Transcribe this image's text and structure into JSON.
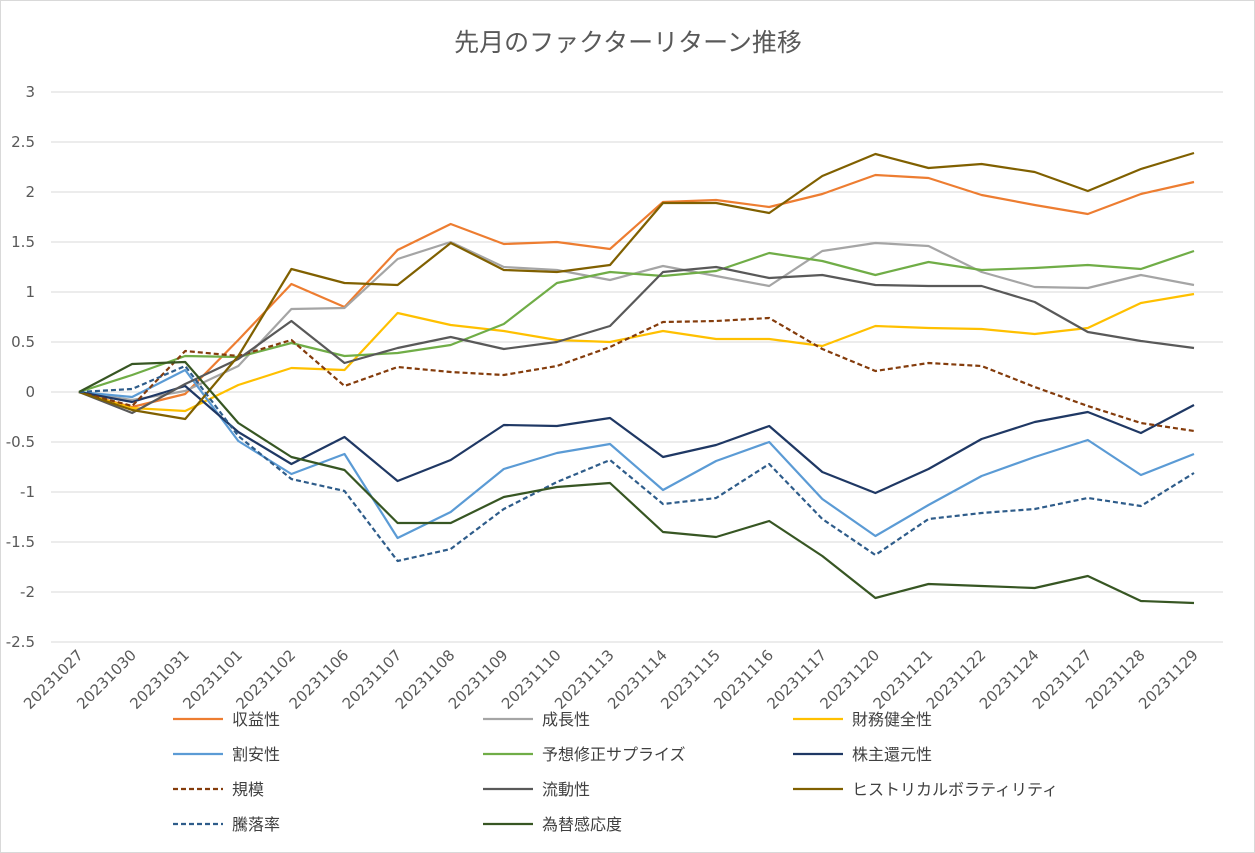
{
  "chart_data": {
    "type": "line",
    "title": "先月のファクターリターン推移",
    "xlabel": "",
    "ylabel": "",
    "ylim": [
      -2.5,
      3
    ],
    "yticks": [
      3,
      2.5,
      2,
      1.5,
      1,
      0.5,
      0,
      -0.5,
      -1,
      -1.5,
      -2,
      -2.5
    ],
    "grid": true,
    "legend_position": "bottom",
    "categories": [
      "20231027",
      "20231030",
      "20231031",
      "20231101",
      "20231102",
      "20231106",
      "20231107",
      "20231108",
      "20231109",
      "20231110",
      "20231113",
      "20231114",
      "20231115",
      "20231116",
      "20231117",
      "20231120",
      "20231121",
      "20231122",
      "20231124",
      "20231127",
      "20231128",
      "20231129"
    ],
    "series": [
      {
        "name": "収益性",
        "color": "#ED7D31",
        "dash": "solid",
        "values": [
          0,
          -0.15,
          -0.02,
          0.52,
          1.08,
          0.85,
          1.42,
          1.68,
          1.48,
          1.5,
          1.43,
          1.9,
          1.92,
          1.85,
          1.98,
          2.17,
          2.14,
          1.97,
          1.87,
          1.78,
          1.98,
          2.1
        ]
      },
      {
        "name": "成長性",
        "color": "#A5A5A5",
        "dash": "solid",
        "values": [
          0,
          -0.08,
          0.01,
          0.26,
          0.83,
          0.84,
          1.33,
          1.5,
          1.25,
          1.22,
          1.12,
          1.26,
          1.16,
          1.06,
          1.41,
          1.49,
          1.46,
          1.2,
          1.05,
          1.04,
          1.17,
          1.07
        ]
      },
      {
        "name": "財務健全性",
        "color": "#FFC000",
        "dash": "solid",
        "values": [
          0,
          -0.16,
          -0.19,
          0.07,
          0.24,
          0.22,
          0.79,
          0.67,
          0.61,
          0.52,
          0.5,
          0.61,
          0.53,
          0.53,
          0.46,
          0.66,
          0.64,
          0.63,
          0.58,
          0.64,
          0.89,
          0.98
        ]
      },
      {
        "name": "割安性",
        "color": "#5B9BD5",
        "dash": "solid",
        "values": [
          0,
          -0.05,
          0.22,
          -0.49,
          -0.82,
          -0.62,
          -1.46,
          -1.2,
          -0.77,
          -0.61,
          -0.52,
          -0.98,
          -0.69,
          -0.5,
          -1.07,
          -1.44,
          -1.13,
          -0.84,
          -0.65,
          -0.48,
          -0.83,
          -0.62
        ]
      },
      {
        "name": "予想修正サプライズ",
        "color": "#70AD47",
        "dash": "solid",
        "values": [
          0,
          0.17,
          0.36,
          0.35,
          0.49,
          0.36,
          0.39,
          0.47,
          0.68,
          1.09,
          1.2,
          1.16,
          1.21,
          1.39,
          1.31,
          1.17,
          1.3,
          1.22,
          1.24,
          1.27,
          1.23,
          1.41
        ]
      },
      {
        "name": "株主還元性",
        "color": "#1F3864",
        "dash": "solid",
        "values": [
          0,
          -0.1,
          0.06,
          -0.4,
          -0.72,
          -0.45,
          -0.89,
          -0.68,
          -0.33,
          -0.34,
          -0.26,
          -0.65,
          -0.53,
          -0.34,
          -0.8,
          -1.01,
          -0.77,
          -0.47,
          -0.3,
          -0.2,
          -0.41,
          -0.13
        ]
      },
      {
        "name": "規模",
        "color": "#843C0C",
        "dash": "dashed",
        "values": [
          0,
          -0.14,
          0.41,
          0.36,
          0.52,
          0.06,
          0.25,
          0.2,
          0.17,
          0.26,
          0.45,
          0.7,
          0.71,
          0.74,
          0.43,
          0.21,
          0.29,
          0.26,
          0.05,
          -0.14,
          -0.31,
          -0.39
        ]
      },
      {
        "name": "流動性",
        "color": "#595959",
        "dash": "solid",
        "values": [
          0,
          -0.21,
          0.08,
          0.33,
          0.71,
          0.29,
          0.44,
          0.55,
          0.43,
          0.5,
          0.66,
          1.2,
          1.25,
          1.14,
          1.17,
          1.07,
          1.06,
          1.06,
          0.9,
          0.6,
          0.51,
          0.44
        ]
      },
      {
        "name": "ヒストリカルボラティリティ",
        "color": "#806000",
        "dash": "solid",
        "values": [
          0,
          -0.18,
          -0.27,
          0.36,
          1.23,
          1.09,
          1.07,
          1.49,
          1.22,
          1.2,
          1.27,
          1.89,
          1.89,
          1.79,
          2.16,
          2.38,
          2.24,
          2.28,
          2.2,
          2.01,
          2.23,
          2.39
        ]
      },
      {
        "name": "騰落率",
        "color": "#2E5C8A",
        "dash": "dashed",
        "values": [
          0,
          0.03,
          0.26,
          -0.44,
          -0.87,
          -0.99,
          -1.69,
          -1.57,
          -1.17,
          -0.9,
          -0.68,
          -1.12,
          -1.06,
          -0.72,
          -1.27,
          -1.63,
          -1.27,
          -1.21,
          -1.17,
          -1.06,
          -1.14,
          -0.81
        ]
      },
      {
        "name": "為替感応度",
        "color": "#375623",
        "dash": "solid",
        "values": [
          0,
          0.28,
          0.3,
          -0.31,
          -0.65,
          -0.78,
          -1.31,
          -1.31,
          -1.05,
          -0.95,
          -0.91,
          -1.4,
          -1.45,
          -1.29,
          -1.64,
          -2.06,
          -1.92,
          -1.94,
          -1.96,
          -1.84,
          -2.09,
          -2.11
        ]
      }
    ]
  }
}
